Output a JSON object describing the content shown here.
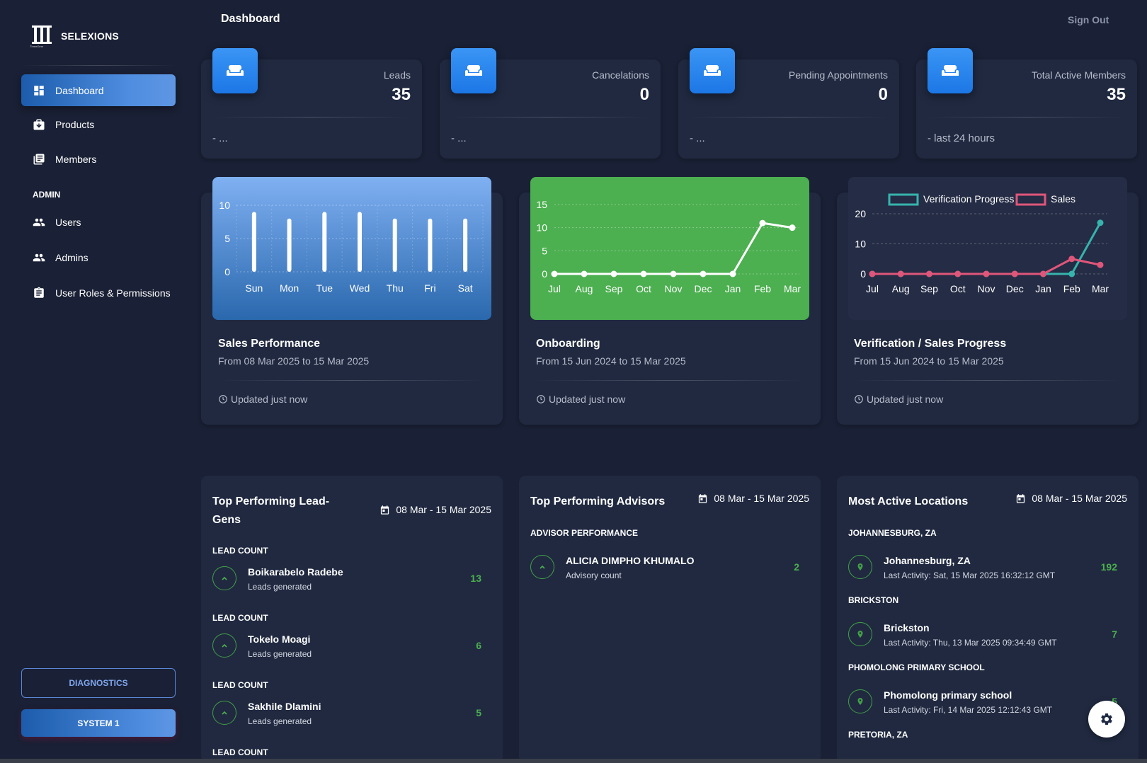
{
  "app": {
    "logo_text": "SELEXIONS",
    "logo_subtext": "ThreeGem"
  },
  "sidebar": {
    "items": [
      {
        "label": "Dashboard",
        "icon": "dashboard-icon",
        "active": true
      },
      {
        "label": "Products",
        "icon": "products-icon"
      },
      {
        "label": "Members",
        "icon": "members-icon"
      }
    ],
    "admin_label": "ADMIN",
    "admin_items": [
      {
        "label": "Users",
        "icon": "users-icon"
      },
      {
        "label": "Admins",
        "icon": "admins-icon"
      },
      {
        "label": "User Roles & Permissions",
        "icon": "clipboard-icon"
      }
    ],
    "diagnostics_label": "DIAGNOSTICS",
    "system_label": "SYSTEM 1"
  },
  "header": {
    "title": "Dashboard",
    "sign_out": "Sign Out"
  },
  "stats": [
    {
      "label": "Leads",
      "value": "35",
      "footer": "- ..."
    },
    {
      "label": "Cancelations",
      "value": "0",
      "footer": "- ..."
    },
    {
      "label": "Pending Appointments",
      "value": "0",
      "footer": "- ..."
    },
    {
      "label": "Total Active Members",
      "value": "35",
      "footer": "- last 24 hours"
    }
  ],
  "charts": [
    {
      "title": "Sales Performance",
      "subtitle": "From 08 Mar 2025 to 15 Mar 2025",
      "footer": "Updated just now"
    },
    {
      "title": "Onboarding",
      "subtitle": "From 15 Jun 2024 to 15 Mar 2025",
      "footer": "Updated just now"
    },
    {
      "title": "Verification / Sales Progress",
      "subtitle": "From 15 Jun 2024 to 15 Mar 2025",
      "footer": "Updated just now"
    }
  ],
  "chart_data": [
    {
      "type": "bar",
      "categories": [
        "Sun",
        "Mon",
        "Tue",
        "Wed",
        "Thu",
        "Fri",
        "Sat"
      ],
      "values": [
        9,
        8,
        9,
        9,
        8,
        8,
        8
      ],
      "yticks": [
        "0",
        "5",
        "10"
      ],
      "ylim": [
        0,
        10
      ],
      "grid": true,
      "colors": {
        "background_top": "#7fb0f2",
        "background_bottom": "#2a68ad",
        "bar": "#ffffff"
      }
    },
    {
      "type": "line",
      "categories": [
        "Jul",
        "Aug",
        "Sep",
        "Oct",
        "Nov",
        "Dec",
        "Jan",
        "Feb",
        "Mar"
      ],
      "values": [
        0,
        0,
        0,
        0,
        0,
        0,
        0,
        11,
        10
      ],
      "yticks": [
        "0",
        "5",
        "10",
        "15"
      ],
      "ylim": [
        0,
        15
      ],
      "grid": true,
      "colors": {
        "background": "#4caf50",
        "line": "#ffffff"
      }
    },
    {
      "type": "line",
      "categories": [
        "Jul",
        "Aug",
        "Sep",
        "Oct",
        "Nov",
        "Dec",
        "Jan",
        "Feb",
        "Mar"
      ],
      "yticks": [
        "0",
        "10",
        "20"
      ],
      "ylim": [
        0,
        20
      ],
      "grid": true,
      "legend": "top",
      "series": [
        {
          "name": "Verification Progress",
          "values": [
            0,
            0,
            0,
            0,
            0,
            0,
            0,
            0,
            17
          ],
          "color": "#36b3ad"
        },
        {
          "name": "Sales",
          "values": [
            0,
            0,
            0,
            0,
            0,
            0,
            0,
            5,
            3
          ],
          "color": "#e0567a"
        }
      ],
      "colors": {
        "background": "#252c45"
      }
    }
  ],
  "lists": [
    {
      "title_line1": "Top Performing Lead-",
      "title_line2": "Gens",
      "date": "08 Mar - 15 Mar 2025",
      "entries": [
        {
          "section": "LEAD COUNT",
          "name": "Boikarabelo Radebe",
          "sub": "Leads generated",
          "value": "13"
        },
        {
          "section": "LEAD COUNT",
          "name": "Tokelo Moagi",
          "sub": "Leads generated",
          "value": "6"
        },
        {
          "section": "LEAD COUNT",
          "name": "Sakhile Dlamini",
          "sub": "Leads generated",
          "value": "5"
        }
      ],
      "trailing_section": "LEAD COUNT"
    },
    {
      "title": "Top Performing Advisors",
      "date": "08 Mar - 15 Mar 2025",
      "entries": [
        {
          "section": "ADVISOR PERFORMANCE",
          "name": "ALICIA DIMPHO KHUMALO",
          "sub": "Advisory count",
          "value": "2"
        }
      ]
    },
    {
      "title": "Most Active Locations",
      "date": "08 Mar - 15 Mar 2025",
      "entries": [
        {
          "section": "JOHANNESBURG, ZA",
          "name": "Johannesburg, ZA",
          "sub": "Last Activity: Sat, 15 Mar 2025 16:32:12 GMT",
          "value": "192"
        },
        {
          "section": "BRICKSTON",
          "name": "Brickston",
          "sub": "Last Activity: Thu, 13 Mar 2025 09:34:49 GMT",
          "value": "7"
        },
        {
          "section": "PHOMOLONG PRIMARY SCHOOL",
          "name": "Phomolong primary school",
          "sub": "Last Activity: Fri, 14 Mar 2025 12:12:43 GMT",
          "value": "5"
        }
      ],
      "trailing_section": "PRETORIA, ZA"
    }
  ],
  "fab_icon": "settings-gear-icon"
}
